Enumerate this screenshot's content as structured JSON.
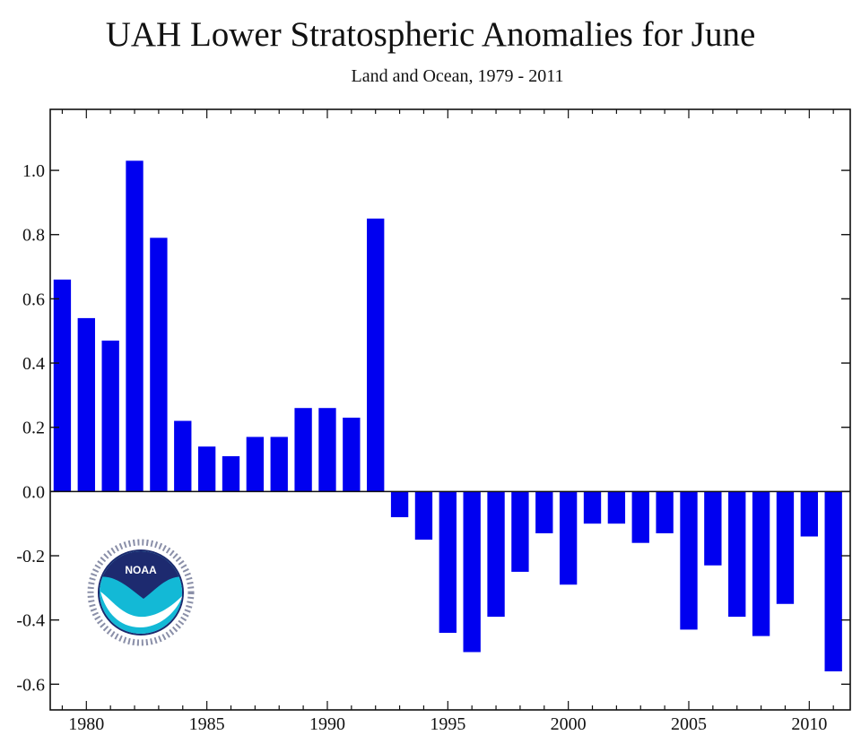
{
  "chart_data": {
    "type": "bar",
    "title": "UAH Lower Stratospheric Anomalies for June",
    "subtitle": "Land and Ocean, 1979 - 2011",
    "xlabel": "",
    "ylabel": "",
    "x": [
      1979,
      1980,
      1981,
      1982,
      1983,
      1984,
      1985,
      1986,
      1987,
      1988,
      1989,
      1990,
      1991,
      1992,
      1993,
      1994,
      1995,
      1996,
      1997,
      1998,
      1999,
      2000,
      2001,
      2002,
      2003,
      2004,
      2005,
      2006,
      2007,
      2008,
      2009,
      2010,
      2011
    ],
    "values": [
      0.66,
      0.54,
      0.47,
      1.03,
      0.79,
      0.22,
      0.14,
      0.11,
      0.17,
      0.17,
      0.26,
      0.26,
      0.23,
      0.85,
      -0.08,
      -0.15,
      -0.44,
      -0.5,
      -0.39,
      -0.25,
      -0.13,
      -0.29,
      -0.1,
      -0.1,
      -0.16,
      -0.13,
      -0.43,
      -0.23,
      -0.39,
      -0.45,
      -0.35,
      -0.14,
      -0.56
    ],
    "ylim": [
      -0.68,
      1.19
    ],
    "xlim": [
      1978.5,
      2011.7
    ],
    "yticks": [
      -0.6,
      -0.4,
      -0.2,
      0.0,
      0.2,
      0.4,
      0.6,
      0.8,
      1.0
    ],
    "ytick_labels": [
      "-0.6",
      "-0.4",
      "-0.2",
      "0.0",
      "0.2",
      "0.4",
      "0.6",
      "0.8",
      "1.0"
    ],
    "xticks": [
      1980,
      1985,
      1990,
      1995,
      2000,
      2005,
      2010
    ],
    "xtick_labels": [
      "1980",
      "1985",
      "1990",
      "1995",
      "2000",
      "2005",
      "2010"
    ],
    "bar_color": "#0000f0",
    "grid": false,
    "legend": "none"
  },
  "logo": {
    "icon": "noaa-logo-icon",
    "text": "NOAA"
  }
}
